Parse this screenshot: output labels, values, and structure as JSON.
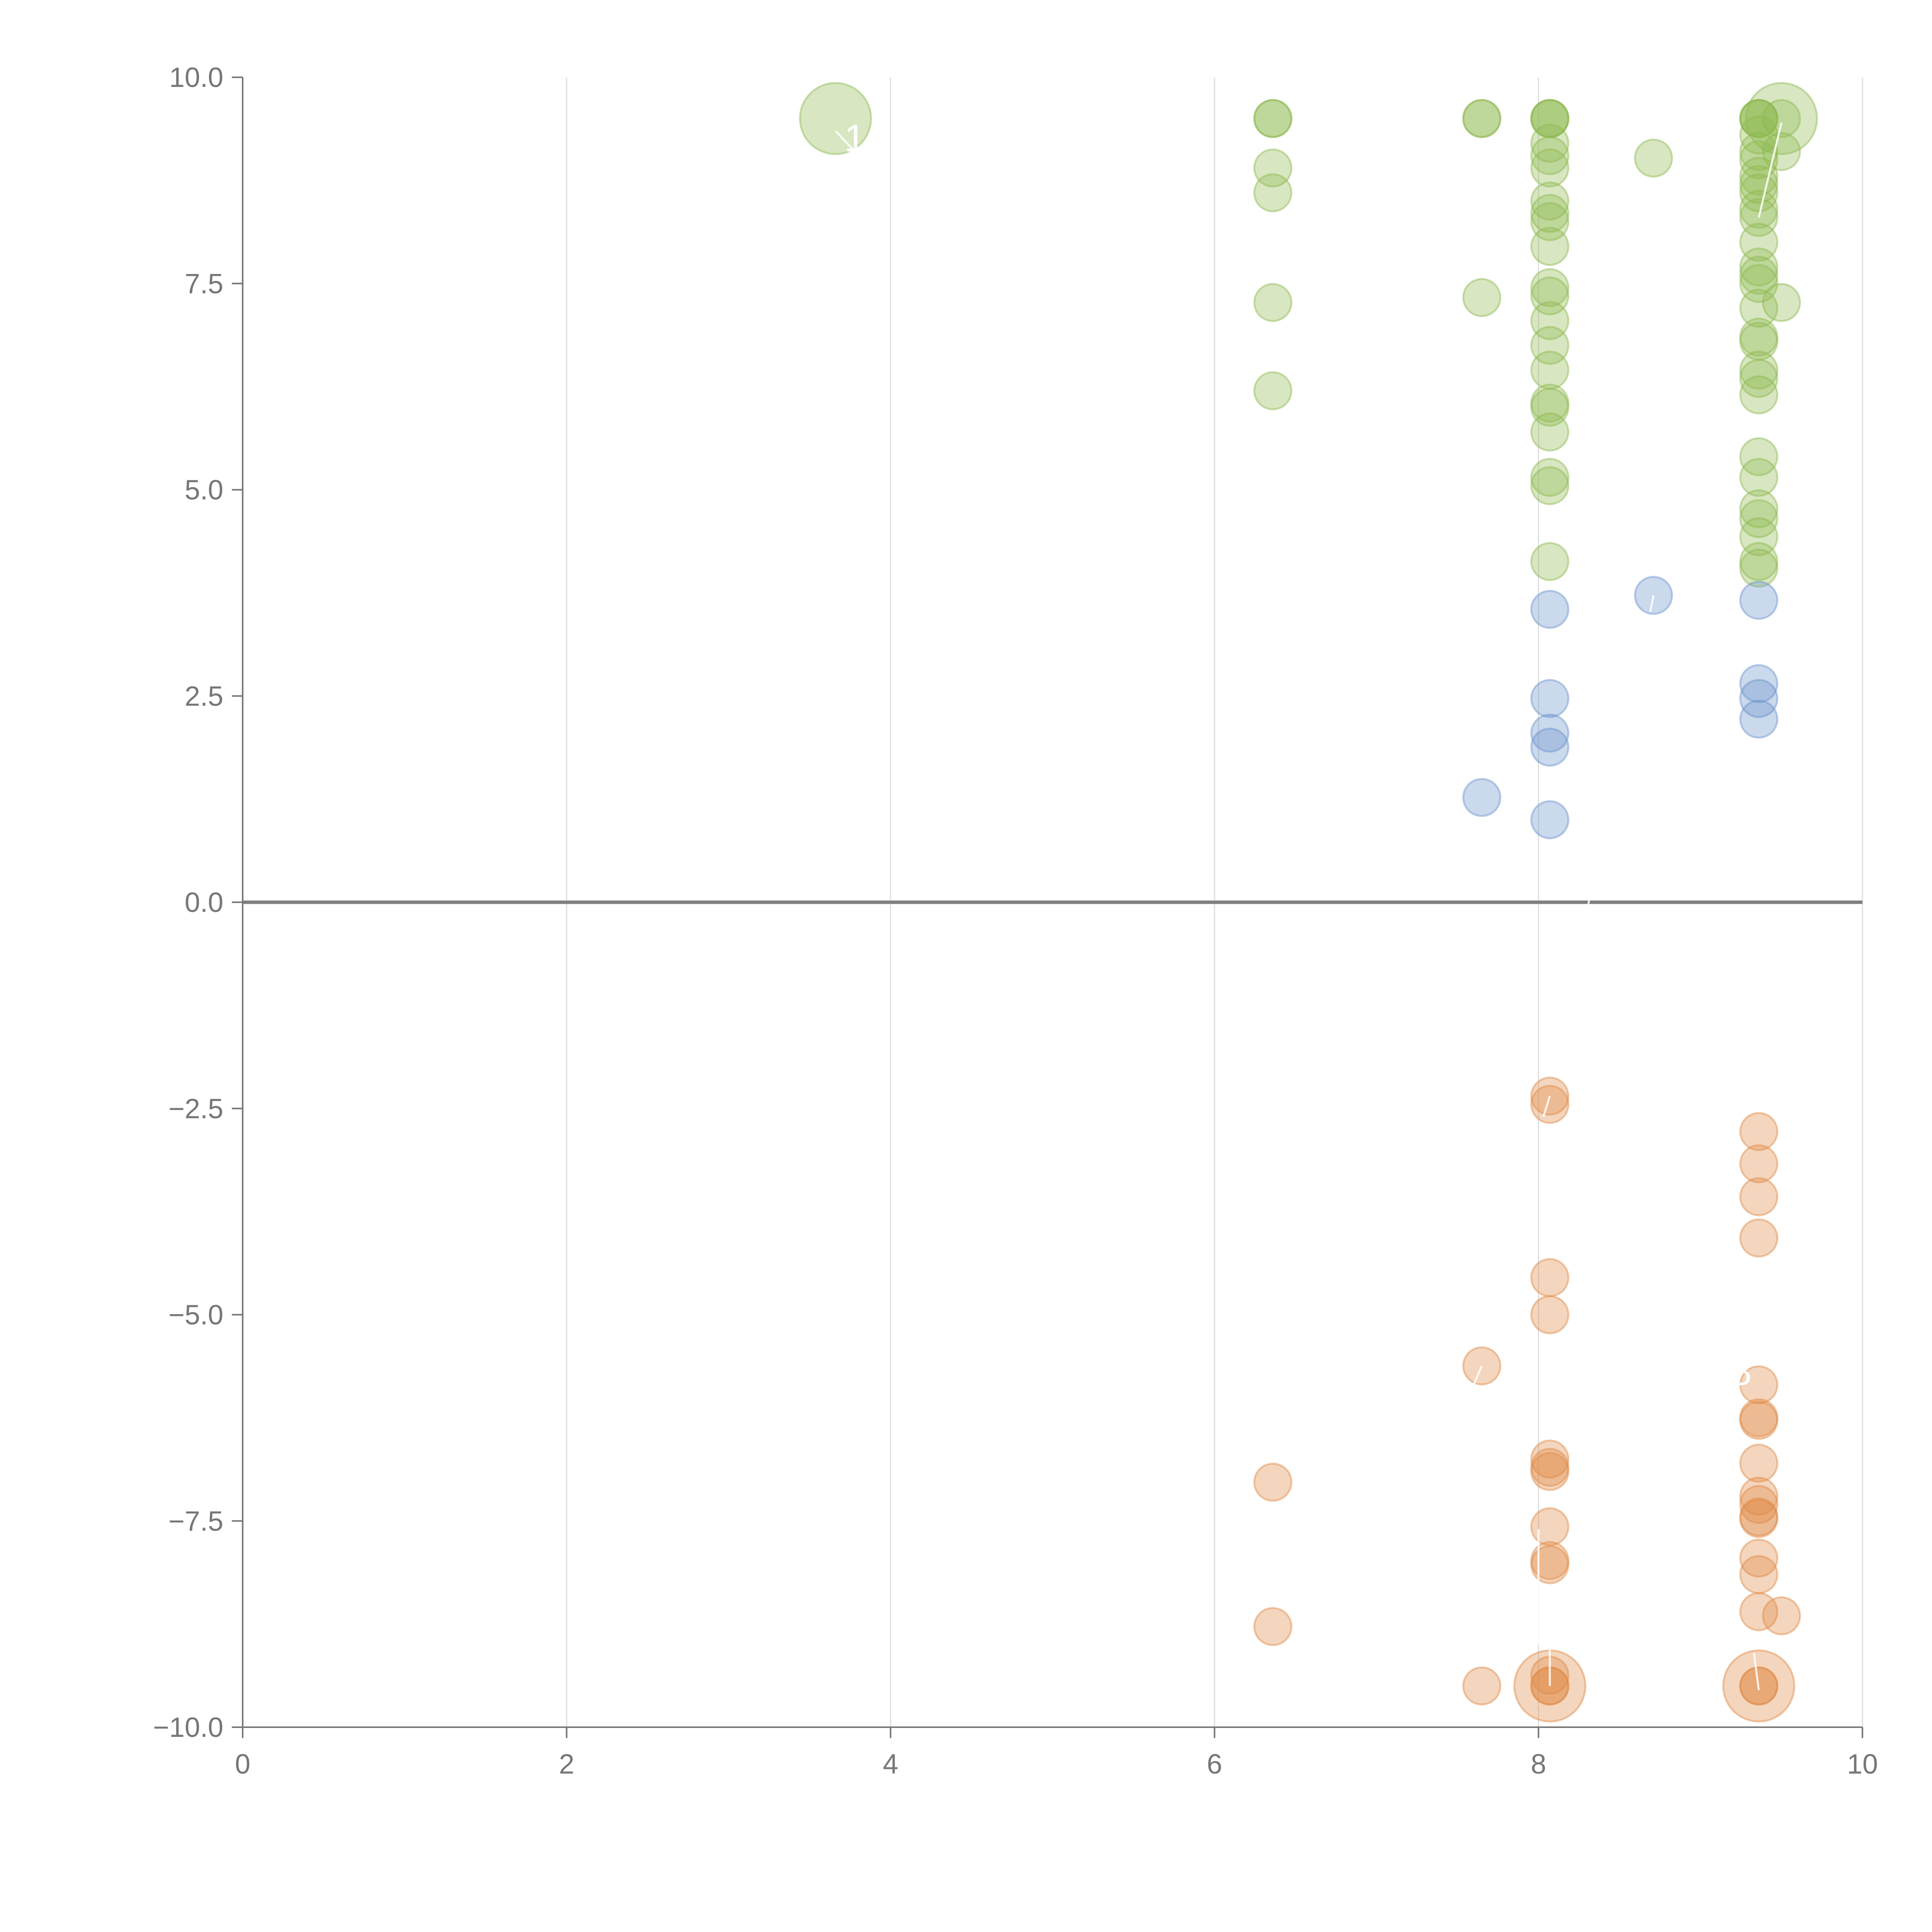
{
  "chart_data": {
    "type": "scatter",
    "title": "",
    "xlabel": "",
    "ylabel": "",
    "xlim": [
      0,
      10
    ],
    "ylim": [
      -10,
      10
    ],
    "x_ticks": [
      0,
      2,
      4,
      6,
      8,
      10
    ],
    "x_tick_labels": [
      "0",
      "2",
      "4",
      "6",
      "8",
      "10"
    ],
    "y_ticks": [
      10,
      7.5,
      5,
      2.5,
      0,
      -2.5,
      -5,
      -7.5,
      -10
    ],
    "y_tick_labels": [
      "10.0",
      "7.5",
      "5.0",
      "2.5",
      "0.0",
      "−2.5",
      "−5.0",
      "−7.5",
      "−10.0"
    ],
    "vertical_grid": true,
    "zero_line": true,
    "colors": {
      "green": "#8fb94f",
      "blue": "#6a93cc",
      "orange": "#e08a45",
      "axis": "#777777",
      "grid": "#dddddd",
      "zero_line": "#808080"
    },
    "series": [
      {
        "name": "green",
        "color": "#8fb94f",
        "points": [
          {
            "x": 3.66,
            "y": 9.5,
            "large": true
          },
          {
            "x": 9.5,
            "y": 9.5,
            "large": true
          },
          {
            "x": 6.36,
            "y": 9.5
          },
          {
            "x": 6.36,
            "y": 9.5
          },
          {
            "x": 6.36,
            "y": 8.9
          },
          {
            "x": 6.36,
            "y": 8.6
          },
          {
            "x": 6.36,
            "y": 7.27
          },
          {
            "x": 6.36,
            "y": 6.2
          },
          {
            "x": 7.65,
            "y": 9.5
          },
          {
            "x": 7.65,
            "y": 9.5
          },
          {
            "x": 7.65,
            "y": 7.33
          },
          {
            "x": 8.07,
            "y": 9.5
          },
          {
            "x": 8.07,
            "y": 9.5
          },
          {
            "x": 8.07,
            "y": 9.5
          },
          {
            "x": 8.07,
            "y": 9.2
          },
          {
            "x": 8.07,
            "y": 9.05
          },
          {
            "x": 8.07,
            "y": 8.9
          },
          {
            "x": 8.07,
            "y": 8.5
          },
          {
            "x": 8.07,
            "y": 8.35
          },
          {
            "x": 8.07,
            "y": 8.25
          },
          {
            "x": 8.07,
            "y": 7.95
          },
          {
            "x": 8.07,
            "y": 7.45
          },
          {
            "x": 8.07,
            "y": 7.35
          },
          {
            "x": 8.07,
            "y": 7.05
          },
          {
            "x": 8.07,
            "y": 6.75
          },
          {
            "x": 8.07,
            "y": 6.45
          },
          {
            "x": 8.07,
            "y": 6.05
          },
          {
            "x": 8.07,
            "y": 6.0
          },
          {
            "x": 8.07,
            "y": 5.7
          },
          {
            "x": 8.07,
            "y": 5.15
          },
          {
            "x": 8.07,
            "y": 5.05
          },
          {
            "x": 8.07,
            "y": 4.13
          },
          {
            "x": 8.71,
            "y": 9.02
          },
          {
            "x": 9.36,
            "y": 9.5
          },
          {
            "x": 9.36,
            "y": 9.5
          },
          {
            "x": 9.36,
            "y": 9.5
          },
          {
            "x": 9.36,
            "y": 9.3
          },
          {
            "x": 9.36,
            "y": 9.1
          },
          {
            "x": 9.36,
            "y": 9.0
          },
          {
            "x": 9.36,
            "y": 8.8
          },
          {
            "x": 9.36,
            "y": 8.7
          },
          {
            "x": 9.36,
            "y": 8.6
          },
          {
            "x": 9.36,
            "y": 8.4
          },
          {
            "x": 9.36,
            "y": 8.3
          },
          {
            "x": 9.36,
            "y": 8.0
          },
          {
            "x": 9.36,
            "y": 7.7
          },
          {
            "x": 9.36,
            "y": 7.6
          },
          {
            "x": 9.36,
            "y": 7.5
          },
          {
            "x": 9.36,
            "y": 7.2
          },
          {
            "x": 9.36,
            "y": 6.85
          },
          {
            "x": 9.36,
            "y": 6.8
          },
          {
            "x": 9.36,
            "y": 6.45
          },
          {
            "x": 9.36,
            "y": 6.35
          },
          {
            "x": 9.36,
            "y": 6.15
          },
          {
            "x": 9.36,
            "y": 5.4
          },
          {
            "x": 9.36,
            "y": 5.15
          },
          {
            "x": 9.36,
            "y": 4.77
          },
          {
            "x": 9.36,
            "y": 4.65
          },
          {
            "x": 9.36,
            "y": 4.43
          },
          {
            "x": 9.36,
            "y": 4.13
          },
          {
            "x": 9.36,
            "y": 4.05
          },
          {
            "x": 9.5,
            "y": 9.5
          },
          {
            "x": 9.5,
            "y": 9.1
          },
          {
            "x": 9.5,
            "y": 7.27
          }
        ]
      },
      {
        "name": "blue",
        "color": "#6a93cc",
        "points": [
          {
            "x": 7.65,
            "y": 1.27
          },
          {
            "x": 8.07,
            "y": 3.55
          },
          {
            "x": 8.07,
            "y": 2.47
          },
          {
            "x": 8.07,
            "y": 2.05
          },
          {
            "x": 8.07,
            "y": 1.88
          },
          {
            "x": 8.07,
            "y": 1.0
          },
          {
            "x": 8.71,
            "y": 3.72
          },
          {
            "x": 9.36,
            "y": 3.66
          },
          {
            "x": 9.36,
            "y": 2.65
          },
          {
            "x": 9.36,
            "y": 2.47
          },
          {
            "x": 9.36,
            "y": 2.22
          }
        ]
      },
      {
        "name": "orange",
        "color": "#e08a45",
        "points": [
          {
            "x": 8.07,
            "y": -9.5,
            "large": true
          },
          {
            "x": 9.36,
            "y": -9.5,
            "large": true
          },
          {
            "x": 6.36,
            "y": -7.03
          },
          {
            "x": 6.36,
            "y": -8.78
          },
          {
            "x": 7.65,
            "y": -5.62
          },
          {
            "x": 7.65,
            "y": -9.5
          },
          {
            "x": 8.07,
            "y": -2.35
          },
          {
            "x": 8.07,
            "y": -2.45
          },
          {
            "x": 8.07,
            "y": -4.55
          },
          {
            "x": 8.07,
            "y": -5.0
          },
          {
            "x": 8.07,
            "y": -6.75
          },
          {
            "x": 8.07,
            "y": -6.85
          },
          {
            "x": 8.07,
            "y": -6.9
          },
          {
            "x": 8.07,
            "y": -7.57
          },
          {
            "x": 8.07,
            "y": -7.98
          },
          {
            "x": 8.07,
            "y": -8.03
          },
          {
            "x": 8.07,
            "y": -9.37
          },
          {
            "x": 8.07,
            "y": -9.5
          },
          {
            "x": 8.07,
            "y": -9.5
          },
          {
            "x": 9.36,
            "y": -2.78
          },
          {
            "x": 9.36,
            "y": -3.17
          },
          {
            "x": 9.36,
            "y": -3.57
          },
          {
            "x": 9.36,
            "y": -4.07
          },
          {
            "x": 9.36,
            "y": -5.85
          },
          {
            "x": 9.36,
            "y": -6.25
          },
          {
            "x": 9.36,
            "y": -6.28
          },
          {
            "x": 9.36,
            "y": -6.8
          },
          {
            "x": 9.36,
            "y": -7.2
          },
          {
            "x": 9.36,
            "y": -7.3
          },
          {
            "x": 9.36,
            "y": -7.45
          },
          {
            "x": 9.36,
            "y": -7.47
          },
          {
            "x": 9.36,
            "y": -7.95
          },
          {
            "x": 9.36,
            "y": -8.15
          },
          {
            "x": 9.36,
            "y": -8.6
          },
          {
            "x": 9.36,
            "y": -9.5
          },
          {
            "x": 9.36,
            "y": -9.5
          },
          {
            "x": 9.5,
            "y": -8.65
          }
        ]
      }
    ],
    "annotations": [
      {
        "text": "1",
        "x": 3.78,
        "y": 9.1,
        "line_from": [
          3.66,
          9.35
        ],
        "line_to": [
          3.78,
          9.1
        ]
      },
      {
        "text": "8",
        "x": 9.25,
        "y": -5.85,
        "line_from": null,
        "line_to": null
      },
      {
        "text": "8",
        "x": 8.07,
        "y": -9.0,
        "line_from": [
          8.07,
          -9.5
        ],
        "line_to": [
          8.07,
          -9.05
        ]
      }
    ],
    "annotation_lines": [
      {
        "from": [
          9.5,
          9.45
        ],
        "to": [
          9.36,
          8.3
        ]
      },
      {
        "from": [
          8.71,
          3.72
        ],
        "to": [
          8.69,
          3.52
        ]
      },
      {
        "from": [
          8.33,
          0.2
        ],
        "to": [
          8.3,
          -0.1
        ]
      },
      {
        "from": [
          8.07,
          -2.35
        ],
        "to": [
          8.03,
          -2.6
        ]
      },
      {
        "from": [
          7.65,
          -5.62
        ],
        "to": [
          7.6,
          -5.85
        ]
      },
      {
        "from": [
          8.0,
          -7.6
        ],
        "to": [
          8.0,
          -9.0
        ]
      },
      {
        "from": [
          9.36,
          -9.55
        ],
        "to": [
          9.33,
          -9.1
        ]
      }
    ]
  }
}
